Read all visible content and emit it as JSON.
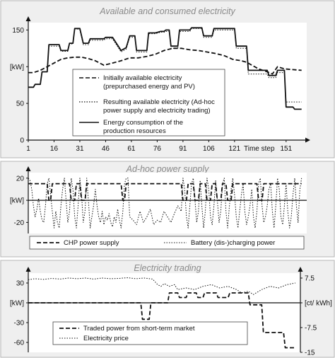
{
  "chart_data": [
    {
      "type": "line",
      "title": "Available and consumed electricity",
      "ylabel": "[kW]",
      "xlabel": "Time step",
      "xlim": [
        1,
        163
      ],
      "ylim": [
        0,
        160
      ],
      "yticks": [
        0,
        50,
        100,
        150
      ],
      "ytick_labels": [
        "0",
        "50",
        "[kW]",
        "150"
      ],
      "xticks": [
        1,
        16,
        31,
        46,
        61,
        76,
        91,
        106,
        121,
        151
      ],
      "xtick_labels": [
        "1",
        "16",
        "31",
        "46",
        "61",
        "76",
        "91",
        "106",
        "121",
        "151"
      ],
      "series": [
        {
          "name": "Initially available electricity (prepurchased energy and PV)",
          "style": "dashed",
          "x": [
            1,
            4,
            8,
            12,
            16,
            20,
            24,
            28,
            32,
            36,
            40,
            45,
            50,
            55,
            60,
            65,
            70,
            75,
            80,
            85,
            90,
            95,
            100,
            105,
            110,
            115,
            120,
            125,
            128,
            135,
            140,
            143,
            146,
            150,
            155,
            160
          ],
          "y": [
            92,
            92,
            95,
            100,
            105,
            110,
            112,
            113,
            113,
            111,
            108,
            102,
            105,
            108,
            112,
            112,
            114,
            117,
            122,
            125,
            125,
            123,
            122,
            120,
            118,
            115,
            110,
            108,
            106,
            97,
            93,
            90,
            100,
            97,
            96,
            95
          ]
        },
        {
          "name": "Resulting available electricity (Ad-hoc power supply and electricity trading)",
          "style": "dotted",
          "x": [
            1,
            4,
            5,
            8,
            9,
            12,
            13,
            19,
            20,
            24,
            25,
            27,
            28,
            29,
            31,
            33,
            36,
            37,
            40,
            41,
            45,
            46,
            50,
            55,
            58,
            60,
            63,
            64,
            70,
            71,
            75,
            78,
            80,
            81,
            83,
            84,
            88,
            89,
            95,
            96,
            102,
            103,
            108,
            109,
            112,
            113,
            121,
            122,
            128,
            129,
            140,
            141,
            143,
            145,
            146,
            150,
            151,
            160
          ],
          "y": [
            72,
            72,
            76,
            76,
            93,
            93,
            128,
            128,
            121,
            121,
            131,
            131,
            152,
            152,
            150,
            130,
            130,
            136,
            136,
            136,
            136,
            138,
            138,
            120,
            124,
            140,
            140,
            120,
            120,
            145,
            145,
            147,
            147,
            148,
            148,
            125,
            125,
            148,
            148,
            152,
            152,
            140,
            140,
            150,
            150,
            150,
            150,
            125,
            125,
            90,
            90,
            85,
            85,
            85,
            92,
            92,
            52,
            52
          ]
        },
        {
          "name": "Energy consumption of the production resources",
          "style": "solid",
          "x": [
            1,
            4,
            5,
            8,
            9,
            12,
            13,
            19,
            20,
            24,
            25,
            27,
            28,
            29,
            31,
            33,
            36,
            37,
            40,
            41,
            45,
            46,
            50,
            55,
            58,
            60,
            63,
            64,
            70,
            71,
            75,
            78,
            80,
            81,
            83,
            84,
            88,
            89,
            95,
            96,
            102,
            103,
            108,
            109,
            112,
            113,
            121,
            122,
            128,
            129,
            140,
            141,
            143,
            145,
            146,
            150,
            151,
            155,
            156,
            160
          ],
          "y": [
            72,
            72,
            76,
            76,
            93,
            93,
            130,
            130,
            122,
            122,
            132,
            132,
            152,
            152,
            152,
            132,
            132,
            138,
            138,
            138,
            138,
            140,
            140,
            122,
            126,
            142,
            142,
            122,
            122,
            146,
            146,
            148,
            148,
            150,
            150,
            128,
            128,
            150,
            150,
            153,
            153,
            142,
            142,
            152,
            152,
            152,
            152,
            128,
            128,
            95,
            95,
            88,
            88,
            88,
            95,
            95,
            45,
            45,
            42,
            42
          ]
        }
      ],
      "legend_position": "center"
    },
    {
      "type": "line",
      "title": "Ad-hoc power supply",
      "ylabel": "[kW]",
      "xlim": [
        1,
        163
      ],
      "ylim": [
        -30,
        25
      ],
      "yticks": [
        -20,
        0,
        20
      ],
      "ytick_labels": [
        "-20",
        "[kW]",
        "20"
      ],
      "series": [
        {
          "name": "CHP power supply",
          "style": "dashed",
          "x": [
            1,
            12,
            13,
            14,
            15,
            25,
            26,
            28,
            29,
            31,
            32,
            34,
            35,
            37,
            38,
            55,
            56,
            57,
            58,
            60,
            61,
            90,
            91,
            93,
            94,
            97,
            98,
            100,
            101,
            104,
            105,
            107,
            108,
            110,
            111,
            113,
            114,
            116,
            117,
            119,
            120,
            134,
            135,
            137,
            138,
            145,
            146,
            160
          ],
          "y": [
            15,
            15,
            0,
            0,
            15,
            15,
            0,
            0,
            15,
            15,
            0,
            0,
            15,
            15,
            15,
            15,
            0,
            0,
            15,
            15,
            15,
            15,
            0,
            0,
            15,
            15,
            0,
            0,
            15,
            15,
            0,
            0,
            15,
            15,
            0,
            0,
            15,
            15,
            0,
            0,
            15,
            15,
            0,
            0,
            15,
            15,
            15,
            15
          ]
        },
        {
          "name": "Battery (dis-)charging power",
          "style": "dotted",
          "x": [
            1,
            2,
            3,
            4,
            5,
            6,
            7,
            8,
            9,
            10,
            11,
            12,
            13,
            14,
            15,
            16,
            17,
            18,
            19,
            20,
            21,
            22,
            23,
            24,
            25,
            26,
            27,
            28,
            29,
            30,
            31,
            32,
            33,
            34,
            35,
            36,
            37,
            38,
            39,
            40,
            41,
            42,
            43,
            44,
            45,
            46,
            47,
            48,
            49,
            50,
            51,
            52,
            53,
            54,
            55,
            56,
            57,
            58,
            59,
            60,
            62,
            64,
            66,
            68,
            70,
            72,
            74,
            76,
            78,
            80,
            82,
            84,
            86,
            88,
            90,
            91,
            92,
            93,
            94,
            95,
            96,
            97,
            98,
            99,
            100,
            101,
            102,
            103,
            104,
            105,
            106,
            107,
            108,
            109,
            110,
            111,
            112,
            113,
            114,
            115,
            116,
            117,
            118,
            119,
            120,
            121,
            122,
            123,
            124,
            125,
            126,
            127,
            128,
            129,
            130,
            131,
            132,
            133,
            134,
            135,
            136,
            137,
            138,
            139,
            140,
            141,
            142,
            143,
            144,
            145,
            146,
            147,
            148,
            149,
            150,
            151,
            152,
            153,
            154,
            155,
            156,
            157,
            158,
            159,
            160
          ],
          "y": [
            20,
            18,
            10,
            -5,
            -15,
            -8,
            2,
            -10,
            -18,
            -20,
            -5,
            15,
            20,
            5,
            -10,
            -25,
            -10,
            -20,
            -25,
            -5,
            10,
            20,
            0,
            -20,
            -10,
            20,
            10,
            -15,
            -25,
            -5,
            20,
            5,
            -20,
            -10,
            20,
            0,
            -25,
            -15,
            -5,
            10,
            -5,
            -15,
            -20,
            -10,
            -22,
            -15,
            -18,
            -12,
            -20,
            -24,
            -15,
            -20,
            -8,
            -18,
            -25,
            -10,
            15,
            20,
            20,
            -15,
            -18,
            -22,
            -10,
            -20,
            -15,
            -8,
            -22,
            -18,
            -20,
            -10,
            -15,
            -20,
            -12,
            -5,
            -10,
            20,
            10,
            -15,
            -25,
            -5,
            15,
            20,
            0,
            -20,
            -10,
            18,
            -5,
            -25,
            -10,
            20,
            10,
            -15,
            -22,
            -5,
            18,
            0,
            -20,
            -10,
            15,
            20,
            -10,
            -25,
            -5,
            10,
            20,
            5,
            -15,
            -25,
            -10,
            5,
            15,
            -10,
            -22,
            -15,
            -5,
            10,
            -15,
            -25,
            -10,
            15,
            20,
            -5,
            -20,
            -15,
            -5,
            10,
            15,
            -10,
            -25,
            -5,
            20,
            10,
            -15,
            -22,
            -5,
            15,
            -10,
            -25,
            -15,
            5,
            20,
            -5,
            -20,
            10,
            20
          ]
        }
      ],
      "legend_position": "bottom"
    },
    {
      "type": "line",
      "title": "Electricity trading",
      "ylabel": "[kW]",
      "y2label": "[ct/ kWh]",
      "xlim": [
        1,
        163
      ],
      "ylim": [
        -75,
        45
      ],
      "y2lim": [
        -15,
        9
      ],
      "yticks": [
        -60,
        -30,
        0,
        30
      ],
      "ytick_labels": [
        "-60",
        "-30",
        "[kW]",
        "30"
      ],
      "y2ticks": [
        -15,
        -7.5,
        0,
        7.5
      ],
      "y2tick_labels": [
        "-15",
        "-7.5",
        "[ct/ kWh]",
        "7.5"
      ],
      "series": [
        {
          "name": "Traded power from short-term market",
          "style": "dashed",
          "axis": "left",
          "x": [
            1,
            68,
            69,
            73,
            74,
            84,
            85,
            90,
            91,
            95,
            96,
            101,
            102,
            105,
            106,
            113,
            114,
            120,
            121,
            132,
            133,
            140,
            141,
            153,
            154,
            160
          ],
          "y": [
            0,
            0,
            -25,
            -25,
            0,
            0,
            15,
            15,
            8,
            8,
            15,
            15,
            8,
            8,
            15,
            15,
            8,
            8,
            15,
            15,
            -3,
            -3,
            -45,
            -45,
            -68,
            -68
          ]
        },
        {
          "name": "Electricity price",
          "style": "dotted",
          "axis": "right",
          "x": [
            1,
            5,
            10,
            15,
            20,
            25,
            30,
            35,
            40,
            45,
            50,
            55,
            60,
            65,
            70,
            75,
            78,
            80,
            82,
            85,
            88,
            90,
            95,
            100,
            105,
            110,
            115,
            120,
            125,
            128,
            132,
            135,
            140,
            145,
            150,
            155,
            160
          ],
          "y": [
            7.0,
            7.3,
            7.1,
            7.4,
            7.2,
            7.5,
            7.3,
            7.5,
            7.2,
            7.5,
            7.3,
            7.4,
            7.6,
            7.3,
            7.5,
            7.2,
            5.5,
            5.0,
            5.8,
            5.0,
            5.5,
            4.0,
            4.5,
            4.0,
            5.0,
            5.5,
            4.5,
            5.0,
            4.0,
            3.0,
            3.5,
            2.5,
            4.0,
            5.0,
            4.5,
            5.5,
            6.0
          ]
        }
      ],
      "legend_position": "bottom"
    }
  ],
  "colors": {
    "series": "#111111",
    "axis": "#111111",
    "panel": "#efefef",
    "title": "#8a8a8a"
  }
}
